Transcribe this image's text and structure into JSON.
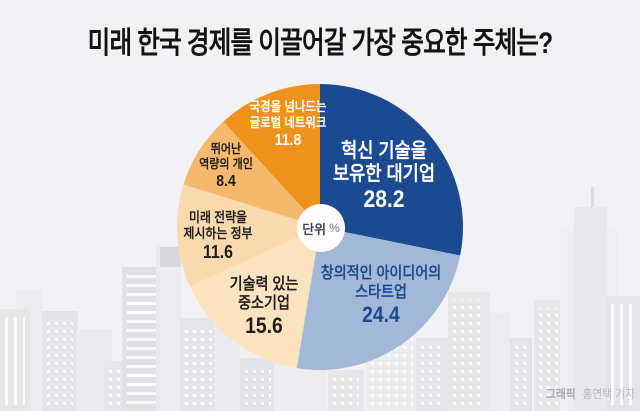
{
  "header": {
    "title": "미래 한국 경제를 이끌어갈 가장 중요한 주체는?"
  },
  "chart_data": {
    "type": "pie",
    "title": "미래 한국 경제를 이끌어갈 가장 중요한 주체는?",
    "unit_note": "단위 %",
    "start_angle_deg": 0,
    "direction": "clockwise",
    "donut_hole": true,
    "slices": [
      {
        "label": "혁신 기술을 보유한 대기업",
        "label_lines": [
          "혁신 기술을",
          "보유한 대기업"
        ],
        "value": 28.2,
        "color": "#1b4a91",
        "text_color": "#ffffff"
      },
      {
        "label": "창의적인 아이디어의 스타트업",
        "label_lines": [
          "창의적인 아이디어의",
          "스타트업"
        ],
        "value": 24.4,
        "color": "#a3b8d6",
        "text_color": "#1b4a91"
      },
      {
        "label": "기술력 있는 중소기업",
        "label_lines": [
          "기술력 있는",
          "중소기업"
        ],
        "value": 15.6,
        "color": "#fbe3c0",
        "text_color": "#1f1d1b"
      },
      {
        "label": "미래 전략을 제시하는 정부",
        "label_lines": [
          "미래 전략을",
          "제시하는 정부"
        ],
        "value": 11.6,
        "color": "#fbd9ae",
        "text_color": "#1f1d1b"
      },
      {
        "label": "뛰어난 역량의 개인",
        "label_lines": [
          "뛰어난",
          "역량의 개인"
        ],
        "value": 8.4,
        "color": "#f5b96d",
        "text_color": "#1f1d1b"
      },
      {
        "label": "국경을 넘나드는 글로벌 네트워크",
        "label_lines": [
          "국경을 넘나드는",
          "글로벌 네트워크"
        ],
        "value": 11.8,
        "color": "#ef921c",
        "text_color": "#ffffff"
      }
    ]
  },
  "center_badge": {
    "unit_label": "단위",
    "percent_symbol": "%"
  },
  "credit": {
    "prefix": "그래픽",
    "name": "홍연택 기자"
  }
}
